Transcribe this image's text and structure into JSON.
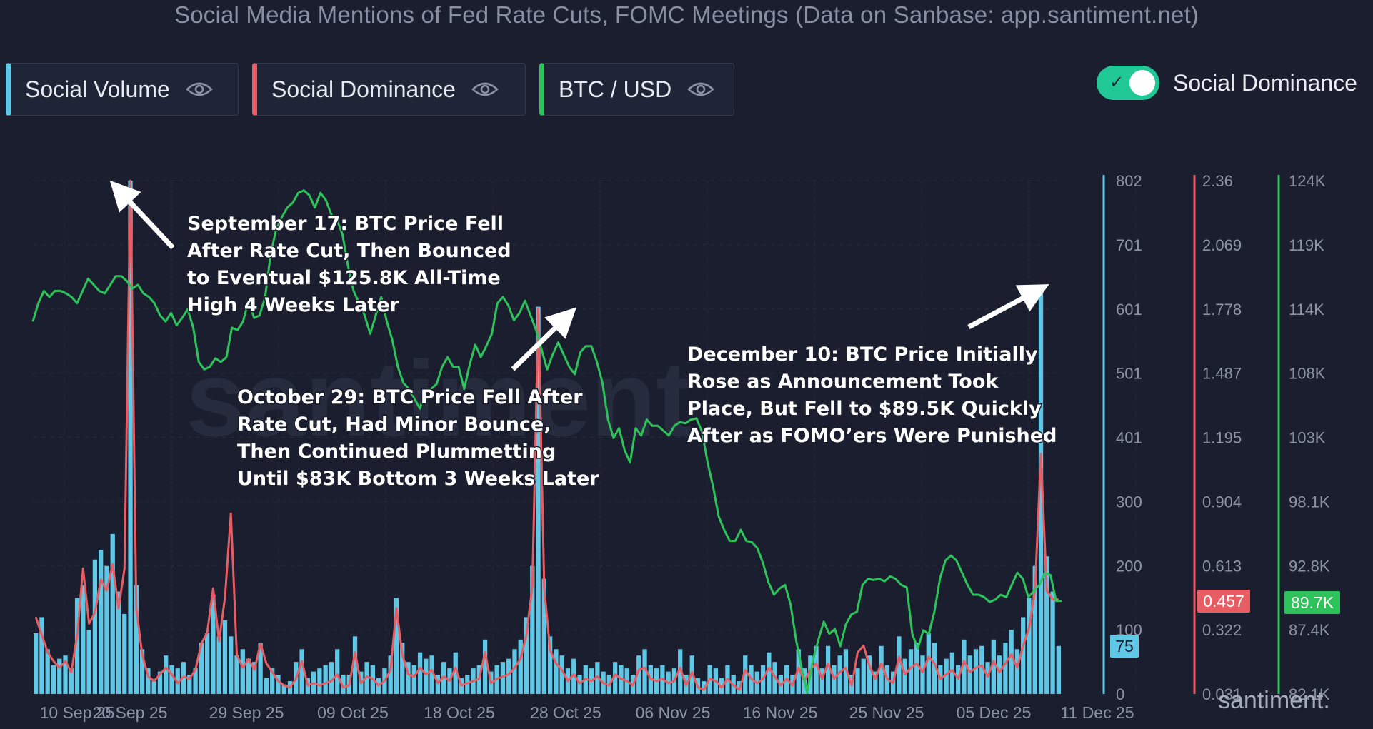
{
  "title": "Social Media Mentions of Fed Rate Cuts, FOMC Meetings (Data on Sanbase: app.santiment.net)",
  "metrics": [
    {
      "label": "Social Volume",
      "color": "#5ec8e6"
    },
    {
      "label": "Social Dominance",
      "color": "#e85c63"
    },
    {
      "label": "BTC / USD",
      "color": "#2ec35a"
    }
  ],
  "toggle": {
    "label": "Social Dominance",
    "on": true
  },
  "watermark": "santiment",
  "brand": "santiment.",
  "chart_data": {
    "type": "bar+line",
    "x_ticks": [
      "10 Sep 25",
      "20 Sep 25",
      "29 Sep 25",
      "09 Oct 25",
      "18 Oct 25",
      "28 Oct 25",
      "06 Nov 25",
      "16 Nov 25",
      "25 Nov 25",
      "05 Dec 25",
      "11 Dec 25"
    ],
    "axes": {
      "social_volume": {
        "ticks": [
          "802",
          "701",
          "601",
          "501",
          "401",
          "300",
          "200",
          "100",
          "0"
        ],
        "current": "75",
        "color": "#5ec8e6"
      },
      "social_dominance": {
        "ticks": [
          "2.36",
          "2.069",
          "1.778",
          "1.487",
          "1.195",
          "0.904",
          "0.613",
          "0.322",
          "0.031"
        ],
        "current": "0.457",
        "color": "#e85c63"
      },
      "btc_usd": {
        "ticks": [
          "124K",
          "119K",
          "114K",
          "108K",
          "103K",
          "98.1K",
          "92.8K",
          "87.4K",
          "82.1K"
        ],
        "current": "89.7K",
        "color": "#2ec35a"
      }
    },
    "series": [
      {
        "name": "Social Volume",
        "type": "bar",
        "axis": "social_volume",
        "color": "#5ec8e6",
        "values": [
          95,
          120,
          70,
          45,
          55,
          60,
          40,
          150,
          170,
          100,
          210,
          225,
          200,
          250,
          160,
          125,
          802,
          170,
          70,
          40,
          20,
          35,
          60,
          45,
          40,
          50,
          30,
          40,
          80,
          95,
          155,
          90,
          115,
          90,
          60,
          70,
          55,
          50,
          80,
          25,
          40,
          30,
          15,
          20,
          50,
          70,
          25,
          35,
          40,
          45,
          50,
          70,
          30,
          30,
          90,
          35,
          50,
          45,
          25,
          40,
          60,
          150,
          80,
          50,
          45,
          65,
          55,
          60,
          30,
          50,
          40,
          65,
          25,
          30,
          40,
          45,
          85,
          35,
          45,
          50,
          55,
          70,
          85,
          120,
          200,
          605,
          180,
          90,
          70,
          60,
          40,
          55,
          30,
          45,
          40,
          50,
          35,
          30,
          50,
          45,
          40,
          30,
          60,
          70,
          45,
          40,
          45,
          35,
          40,
          70,
          30,
          60,
          25,
          20,
          45,
          40,
          25,
          45,
          30,
          20,
          60,
          45,
          35,
          45,
          65,
          50,
          30,
          45,
          30,
          70,
          40,
          60,
          75,
          40,
          75,
          45,
          60,
          70,
          30,
          40,
          55,
          60,
          35,
          75,
          45,
          35,
          90,
          55,
          70,
          80,
          60,
          95,
          80,
          45,
          55,
          65,
          45,
          85,
          60,
          70,
          75,
          50,
          85,
          60,
          80,
          100,
          70,
          120,
          150,
          200,
          635,
          215,
          160,
          75
        ]
      },
      {
        "name": "Social Dominance",
        "type": "line",
        "axis": "social_dominance",
        "color": "#e85c63",
        "values": [
          0.38,
          0.3,
          0.22,
          0.18,
          0.15,
          0.18,
          0.13,
          0.3,
          0.6,
          0.35,
          0.4,
          0.55,
          0.5,
          0.62,
          0.42,
          0.6,
          2.36,
          0.42,
          0.21,
          0.11,
          0.09,
          0.12,
          0.15,
          0.12,
          0.08,
          0.11,
          0.1,
          0.14,
          0.26,
          0.31,
          0.51,
          0.27,
          0.47,
          0.85,
          0.21,
          0.15,
          0.19,
          0.14,
          0.26,
          0.17,
          0.13,
          0.09,
          0.07,
          0.06,
          0.1,
          0.18,
          0.07,
          0.08,
          0.07,
          0.08,
          0.09,
          0.12,
          0.06,
          0.07,
          0.22,
          0.08,
          0.11,
          0.1,
          0.07,
          0.09,
          0.14,
          0.42,
          0.21,
          0.12,
          0.11,
          0.15,
          0.12,
          0.14,
          0.08,
          0.11,
          0.09,
          0.15,
          0.07,
          0.08,
          0.09,
          0.1,
          0.22,
          0.08,
          0.1,
          0.11,
          0.12,
          0.15,
          0.19,
          0.3,
          0.52,
          1.78,
          0.51,
          0.23,
          0.17,
          0.14,
          0.09,
          0.12,
          0.08,
          0.1,
          0.09,
          0.11,
          0.08,
          0.07,
          0.12,
          0.1,
          0.09,
          0.07,
          0.14,
          0.15,
          0.1,
          0.09,
          0.1,
          0.08,
          0.09,
          0.15,
          0.07,
          0.13,
          0.06,
          0.05,
          0.1,
          0.09,
          0.06,
          0.1,
          0.07,
          0.05,
          0.14,
          0.1,
          0.08,
          0.1,
          0.15,
          0.11,
          0.07,
          0.1,
          0.07,
          0.15,
          0.09,
          0.14,
          0.17,
          0.1,
          0.17,
          0.1,
          0.13,
          0.15,
          0.07,
          0.22,
          0.25,
          0.16,
          0.1,
          0.17,
          0.1,
          0.08,
          0.2,
          0.12,
          0.15,
          0.17,
          0.13,
          0.2,
          0.17,
          0.1,
          0.12,
          0.14,
          0.1,
          0.18,
          0.13,
          0.15,
          0.16,
          0.11,
          0.18,
          0.13,
          0.17,
          0.21,
          0.15,
          0.25,
          0.33,
          0.5,
          1.12,
          0.5,
          0.46,
          0.46
        ]
      },
      {
        "name": "BTC / USD",
        "type": "line",
        "axis": "btc_usd",
        "color": "#2ec35a",
        "values": [
          112.5,
          114.0,
          115.0,
          114.5,
          115.0,
          115.0,
          114.8,
          114.5,
          114.0,
          115.0,
          116.0,
          115.5,
          115.0,
          114.8,
          115.5,
          116.2,
          116.2,
          115.8,
          115.2,
          115.5,
          114.8,
          114.5,
          114.0,
          113.0,
          112.5,
          113.2,
          112.2,
          112.8,
          113.5,
          112.0,
          109.2,
          108.6,
          108.8,
          109.5,
          109.2,
          109.6,
          112.0,
          111.8,
          112.5,
          114.2,
          112.8,
          113.0,
          114.5,
          118.0,
          120.0,
          121.0,
          121.8,
          122.2,
          123.0,
          123.2,
          122.8,
          121.8,
          123.0,
          122.4,
          121.2,
          120.8,
          119.6,
          117.0,
          115.0,
          114.0,
          113.0,
          111.5,
          113.0,
          114.5,
          112.5,
          111.0,
          108.8,
          107.5,
          107.0,
          106.2,
          105.4,
          107.0,
          107.0,
          107.4,
          108.8,
          109.6,
          108.8,
          108.8,
          107.0,
          109.0,
          110.6,
          109.6,
          110.5,
          111.5,
          114.0,
          114.5,
          113.8,
          112.6,
          113.2,
          114.2,
          113.0,
          111.8,
          110.2,
          108.6,
          109.8,
          110.8,
          109.8,
          108.8,
          108.2,
          110.0,
          110.5,
          110.5,
          109.2,
          107.5,
          104.5,
          103.0,
          103.8,
          102.0,
          101.0,
          103.8,
          103.2,
          104.5,
          104.0,
          104.0,
          103.6,
          103.2,
          104.0,
          104.3,
          104.2,
          104.5,
          104.6,
          103.5,
          101.0,
          99.0,
          96.6,
          95.5,
          94.6,
          94.6,
          95.5,
          94.6,
          94.5,
          94.0,
          92.8,
          91.2,
          90.2,
          90.7,
          91.0,
          89.4,
          86.5,
          84.2,
          82.2,
          84.8,
          86.5,
          88.0,
          87.0,
          87.4,
          86.0,
          87.8,
          88.6,
          88.8,
          91.0,
          91.5,
          91.4,
          91.5,
          91.3,
          91.7,
          91.5,
          91.0,
          90.8,
          87.0,
          85.8,
          87.3,
          87.0,
          88.8,
          91.5,
          93.0,
          93.4,
          93.0,
          92.0,
          91.0,
          90.2,
          90.2,
          90.0,
          89.6,
          89.8,
          90.2,
          90.0,
          91.0,
          92.0,
          91.5,
          90.0,
          90.5,
          91.0,
          92.0,
          91.8,
          89.7,
          89.7
        ]
      }
    ],
    "annotations": [
      {
        "lines": [
          "September 17: BTC Price Fell",
          "After Rate Cut, Then Bounced",
          "to Eventual $125.8K All-Time",
          "High 4 Weeks Later"
        ]
      },
      {
        "lines": [
          "October 29: BTC Price Fell After",
          "Rate Cut, Had Minor Bounce,",
          "Then Continued Plummetting",
          "Until $83K Bottom 3 Weeks Later"
        ]
      },
      {
        "lines": [
          "December 10: BTC Price Initially",
          "Rose as Announcement Took",
          "Place, But Fell to $89.5K Quickly",
          "After as FOMO’ers Were Punished"
        ]
      }
    ]
  }
}
